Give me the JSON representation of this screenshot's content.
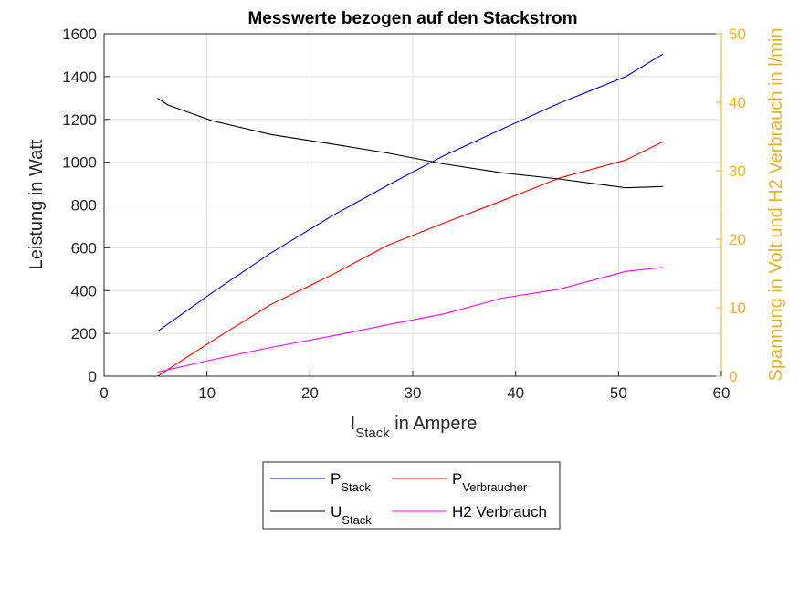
{
  "chart_data": {
    "type": "line",
    "title": "Messwerte bezogen auf den Stackstrom",
    "xlabel": {
      "main": "I",
      "sub": "Stack",
      "suffix": " in Ampere"
    },
    "ylabel_left": "Leistung in Watt",
    "ylabel_right": "Spannung in Volt und H2 Verbrauch in l/min",
    "xlim": [
      0,
      60
    ],
    "ylim_left": [
      0,
      1600
    ],
    "ylim_right": [
      0,
      50
    ],
    "xticks": [
      0,
      10,
      20,
      30,
      40,
      50,
      60
    ],
    "yticks_left": [
      0,
      200,
      400,
      600,
      800,
      1000,
      1200,
      1400,
      1600
    ],
    "yticks_right": [
      0,
      10,
      20,
      30,
      40,
      50
    ],
    "grid": true,
    "legend_position": "bottom-outside",
    "series": [
      {
        "name": {
          "main": "P",
          "sub": "Stack"
        },
        "axis": "left",
        "color": "#0000CC",
        "x": [
          5.2,
          10.5,
          16.2,
          22.2,
          27.5,
          33.0,
          38.7,
          44.2,
          50.7,
          54.3
        ],
        "y": [
          210,
          390,
          575,
          750,
          890,
          1030,
          1155,
          1275,
          1400,
          1505
        ]
      },
      {
        "name": {
          "main": "P",
          "sub": "Verbraucher"
        },
        "axis": "left",
        "color": "#FF0000",
        "x": [
          5.2,
          10.5,
          16.2,
          22.2,
          27.5,
          33.0,
          38.7,
          44.2,
          50.7,
          54.3
        ],
        "y": [
          0,
          165,
          335,
          475,
          610,
          715,
          820,
          925,
          1010,
          1095
        ]
      },
      {
        "name": {
          "main": "U",
          "sub": "Stack"
        },
        "axis": "right",
        "color": "#000000",
        "x": [
          5.2,
          6.2,
          10.5,
          16.2,
          22.2,
          27.5,
          33.0,
          38.7,
          44.2,
          50.7,
          54.3
        ],
        "y": [
          40.6,
          39.6,
          37.3,
          35.3,
          33.9,
          32.6,
          31.0,
          29.7,
          28.8,
          27.5,
          27.7
        ]
      },
      {
        "name": {
          "main": "H2 Verbrauch",
          "sub": ""
        },
        "axis": "right",
        "color": "#FF00FF",
        "x": [
          5.2,
          10.5,
          16.2,
          22.2,
          27.5,
          33.0,
          38.7,
          44.2,
          50.7,
          54.3
        ],
        "y": [
          0.6,
          2.4,
          4.2,
          5.9,
          7.5,
          9.1,
          11.4,
          12.7,
          15.3,
          15.9
        ]
      }
    ]
  }
}
